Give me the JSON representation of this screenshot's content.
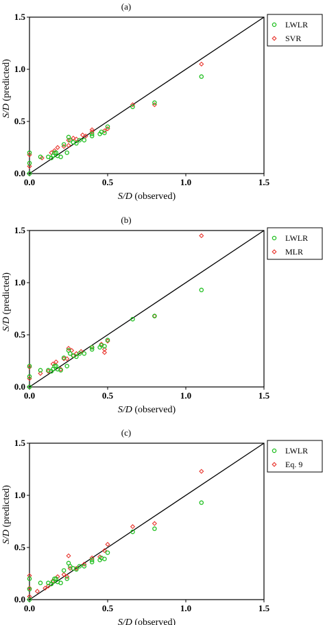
{
  "colors": {
    "lwlr": "#1fbf1f",
    "other": "#e8342c",
    "axis": "#000000"
  },
  "chart_data": [
    {
      "type": "scatter",
      "panel_label": "(a)",
      "xlabel_italic": "S/D",
      "xlabel_rest": " (observed)",
      "ylabel_italic": "S/D",
      "ylabel_rest": " (predicted)",
      "xlim": [
        0,
        1.5
      ],
      "ylim": [
        0,
        1.5
      ],
      "x_ticks": [
        "0.0",
        "0.5",
        "1.0",
        "1.5"
      ],
      "y_ticks": [
        "0.0",
        "0.5",
        "1.0",
        "1.5"
      ],
      "reference_line": "y = x",
      "legend_position": "top-right",
      "series": [
        {
          "name": "LWLR",
          "marker": "circle",
          "color": "#1fbf1f",
          "points": [
            [
              0.0,
              0.2
            ],
            [
              0.0,
              0.1
            ],
            [
              0.0,
              0.0
            ],
            [
              0.07,
              0.16
            ],
            [
              0.12,
              0.16
            ],
            [
              0.14,
              0.15
            ],
            [
              0.15,
              0.17
            ],
            [
              0.16,
              0.2
            ],
            [
              0.17,
              0.2
            ],
            [
              0.18,
              0.17
            ],
            [
              0.2,
              0.16
            ],
            [
              0.22,
              0.28
            ],
            [
              0.24,
              0.2
            ],
            [
              0.25,
              0.35
            ],
            [
              0.26,
              0.32
            ],
            [
              0.28,
              0.3
            ],
            [
              0.3,
              0.29
            ],
            [
              0.32,
              0.32
            ],
            [
              0.35,
              0.32
            ],
            [
              0.4,
              0.38
            ],
            [
              0.4,
              0.36
            ],
            [
              0.45,
              0.38
            ],
            [
              0.46,
              0.4
            ],
            [
              0.48,
              0.39
            ],
            [
              0.5,
              0.45
            ],
            [
              0.66,
              0.64
            ],
            [
              0.8,
              0.68
            ],
            [
              1.1,
              0.93
            ]
          ]
        },
        {
          "name": "SVR",
          "marker": "diamond",
          "color": "#e8342c",
          "points": [
            [
              0.0,
              0.18
            ],
            [
              0.0,
              0.07
            ],
            [
              0.08,
              0.15
            ],
            [
              0.14,
              0.2
            ],
            [
              0.16,
              0.22
            ],
            [
              0.18,
              0.25
            ],
            [
              0.22,
              0.26
            ],
            [
              0.25,
              0.27
            ],
            [
              0.25,
              0.32
            ],
            [
              0.28,
              0.34
            ],
            [
              0.3,
              0.33
            ],
            [
              0.34,
              0.37
            ],
            [
              0.36,
              0.36
            ],
            [
              0.4,
              0.4
            ],
            [
              0.4,
              0.42
            ],
            [
              0.48,
              0.41
            ],
            [
              0.5,
              0.43
            ],
            [
              0.66,
              0.66
            ],
            [
              0.8,
              0.66
            ],
            [
              1.1,
              1.05
            ]
          ]
        }
      ]
    },
    {
      "type": "scatter",
      "panel_label": "(b)",
      "xlabel_italic": "S/D",
      "xlabel_rest": " (observed)",
      "ylabel_italic": "S/D",
      "ylabel_rest": " (predicted)",
      "xlim": [
        0,
        1.5
      ],
      "ylim": [
        0,
        1.5
      ],
      "x_ticks": [
        "0.0",
        "0.5",
        "1.0",
        "1.5"
      ],
      "y_ticks": [
        "0.0",
        "0.5",
        "1.0",
        "1.5"
      ],
      "reference_line": "y = x",
      "legend_position": "top-right",
      "series": [
        {
          "name": "LWLR",
          "marker": "circle",
          "color": "#1fbf1f",
          "points": [
            [
              0.0,
              0.2
            ],
            [
              0.0,
              0.1
            ],
            [
              0.0,
              0.0
            ],
            [
              0.07,
              0.16
            ],
            [
              0.12,
              0.16
            ],
            [
              0.14,
              0.15
            ],
            [
              0.15,
              0.17
            ],
            [
              0.16,
              0.2
            ],
            [
              0.17,
              0.2
            ],
            [
              0.18,
              0.17
            ],
            [
              0.2,
              0.16
            ],
            [
              0.22,
              0.28
            ],
            [
              0.24,
              0.2
            ],
            [
              0.25,
              0.35
            ],
            [
              0.26,
              0.32
            ],
            [
              0.28,
              0.3
            ],
            [
              0.3,
              0.29
            ],
            [
              0.32,
              0.32
            ],
            [
              0.35,
              0.32
            ],
            [
              0.4,
              0.38
            ],
            [
              0.4,
              0.36
            ],
            [
              0.45,
              0.38
            ],
            [
              0.46,
              0.4
            ],
            [
              0.48,
              0.39
            ],
            [
              0.5,
              0.45
            ],
            [
              0.66,
              0.65
            ],
            [
              0.8,
              0.68
            ],
            [
              1.1,
              0.93
            ]
          ]
        },
        {
          "name": "MLR",
          "marker": "diamond",
          "color": "#e8342c",
          "points": [
            [
              0.0,
              0.19
            ],
            [
              0.0,
              0.08
            ],
            [
              0.07,
              0.13
            ],
            [
              0.12,
              0.15
            ],
            [
              0.15,
              0.22
            ],
            [
              0.17,
              0.24
            ],
            [
              0.2,
              0.17
            ],
            [
              0.22,
              0.27
            ],
            [
              0.24,
              0.27
            ],
            [
              0.25,
              0.37
            ],
            [
              0.27,
              0.35
            ],
            [
              0.28,
              0.3
            ],
            [
              0.3,
              0.32
            ],
            [
              0.33,
              0.34
            ],
            [
              0.4,
              0.38
            ],
            [
              0.46,
              0.41
            ],
            [
              0.48,
              0.33
            ],
            [
              0.48,
              0.36
            ],
            [
              0.5,
              0.44
            ],
            [
              0.8,
              0.68
            ],
            [
              1.1,
              1.45
            ]
          ]
        }
      ]
    },
    {
      "type": "scatter",
      "panel_label": "(c)",
      "xlabel_italic": "S/D",
      "xlabel_rest": " (observed)",
      "ylabel_italic": "S/D",
      "ylabel_rest": " (predicted)",
      "xlim": [
        0,
        1.5
      ],
      "ylim": [
        0,
        1.5
      ],
      "x_ticks": [
        "0.0",
        "0.5",
        "1.0",
        "1.5"
      ],
      "y_ticks": [
        "0.0",
        "0.5",
        "1.0",
        "1.5"
      ],
      "reference_line": "y = x",
      "legend_position": "top-right",
      "series": [
        {
          "name": "LWLR",
          "marker": "circle",
          "color": "#1fbf1f",
          "points": [
            [
              0.0,
              0.2
            ],
            [
              0.0,
              0.1
            ],
            [
              0.0,
              0.0
            ],
            [
              0.07,
              0.16
            ],
            [
              0.12,
              0.16
            ],
            [
              0.14,
              0.15
            ],
            [
              0.15,
              0.17
            ],
            [
              0.16,
              0.2
            ],
            [
              0.17,
              0.2
            ],
            [
              0.18,
              0.17
            ],
            [
              0.2,
              0.16
            ],
            [
              0.22,
              0.28
            ],
            [
              0.24,
              0.2
            ],
            [
              0.25,
              0.35
            ],
            [
              0.26,
              0.32
            ],
            [
              0.28,
              0.3
            ],
            [
              0.3,
              0.29
            ],
            [
              0.32,
              0.32
            ],
            [
              0.35,
              0.32
            ],
            [
              0.4,
              0.38
            ],
            [
              0.4,
              0.36
            ],
            [
              0.45,
              0.38
            ],
            [
              0.46,
              0.4
            ],
            [
              0.48,
              0.39
            ],
            [
              0.5,
              0.45
            ],
            [
              0.66,
              0.65
            ],
            [
              0.8,
              0.68
            ],
            [
              1.1,
              0.93
            ]
          ]
        },
        {
          "name": "Eq. 9",
          "marker": "diamond",
          "color": "#e8342c",
          "points": [
            [
              0.0,
              0.23
            ],
            [
              0.0,
              0.11
            ],
            [
              0.0,
              0.03
            ],
            [
              0.05,
              0.08
            ],
            [
              0.1,
              0.11
            ],
            [
              0.12,
              0.13
            ],
            [
              0.15,
              0.18
            ],
            [
              0.18,
              0.22
            ],
            [
              0.22,
              0.24
            ],
            [
              0.24,
              0.22
            ],
            [
              0.25,
              0.42
            ],
            [
              0.26,
              0.3
            ],
            [
              0.3,
              0.3
            ],
            [
              0.35,
              0.34
            ],
            [
              0.4,
              0.4
            ],
            [
              0.45,
              0.41
            ],
            [
              0.48,
              0.47
            ],
            [
              0.5,
              0.53
            ],
            [
              0.66,
              0.7
            ],
            [
              0.8,
              0.73
            ],
            [
              1.1,
              1.23
            ]
          ]
        }
      ]
    }
  ]
}
